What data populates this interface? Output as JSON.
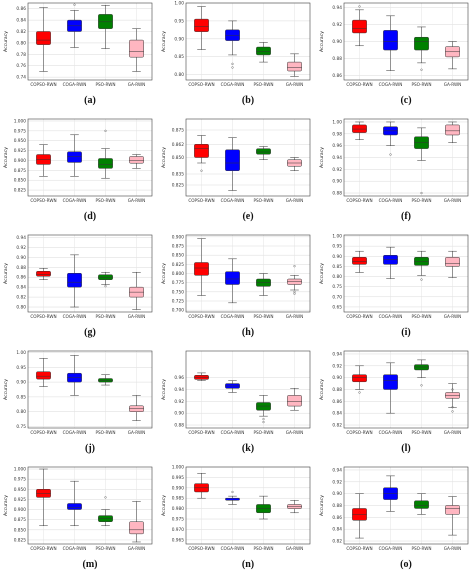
{
  "figure": {
    "categories": [
      "COPSO-RWN",
      "COGA-RWN",
      "PSO-RWN",
      "GA-RWN"
    ],
    "ylabel": "Accuracy",
    "colors": {
      "COPSO-RWN": "#ff0000",
      "COGA-RWN": "#0000ff",
      "PSO-RWN": "#008000",
      "GA-RWN": "#ffb6c1"
    }
  },
  "chart_data": [
    {
      "label": "(a)",
      "type": "boxplot",
      "ylabel": "Accuracy",
      "ylim": [
        0.735,
        0.87
      ],
      "ticks": [
        0.74,
        0.76,
        0.78,
        0.8,
        0.82,
        0.84,
        0.86
      ],
      "ticklabels": [
        "0.74",
        "0.76",
        "0.78",
        "0.80",
        "0.82",
        "0.84",
        "0.86"
      ],
      "series": [
        {
          "category": "COPSO-RWN",
          "min": 0.75,
          "q1": 0.797,
          "median": 0.805,
          "q3": 0.82,
          "max": 0.862,
          "outliers": []
        },
        {
          "category": "COGA-RWN",
          "min": 0.792,
          "q1": 0.82,
          "median": 0.83,
          "q3": 0.84,
          "max": 0.857,
          "outliers": [
            0.867
          ]
        },
        {
          "category": "PSO-RWN",
          "min": 0.79,
          "q1": 0.825,
          "median": 0.837,
          "q3": 0.85,
          "max": 0.866,
          "outliers": []
        },
        {
          "category": "GA-RWN",
          "min": 0.75,
          "q1": 0.775,
          "median": 0.785,
          "q3": 0.805,
          "max": 0.825,
          "outliers": []
        }
      ]
    },
    {
      "label": "(b)",
      "type": "boxplot",
      "ylabel": "Accuracy",
      "ylim": [
        0.785,
        1.0
      ],
      "ticks": [
        0.8,
        0.85,
        0.9,
        0.95,
        1.0
      ],
      "ticklabels": [
        "0.80",
        "0.85",
        "0.90",
        "0.95",
        "1.00"
      ],
      "series": [
        {
          "category": "COPSO-RWN",
          "min": 0.87,
          "q1": 0.92,
          "median": 0.935,
          "q3": 0.955,
          "max": 0.99,
          "outliers": []
        },
        {
          "category": "COGA-RWN",
          "min": 0.855,
          "q1": 0.895,
          "median": 0.91,
          "q3": 0.925,
          "max": 0.95,
          "outliers": [
            0.83,
            0.82
          ]
        },
        {
          "category": "PSO-RWN",
          "min": 0.835,
          "q1": 0.855,
          "median": 0.865,
          "q3": 0.877,
          "max": 0.89,
          "outliers": []
        },
        {
          "category": "GA-RWN",
          "min": 0.795,
          "q1": 0.81,
          "median": 0.82,
          "q3": 0.835,
          "max": 0.858,
          "outliers": []
        }
      ]
    },
    {
      "label": "(c)",
      "type": "boxplot",
      "ylabel": "Accuracy",
      "ylim": [
        0.855,
        0.945
      ],
      "ticks": [
        0.86,
        0.88,
        0.9,
        0.92,
        0.94
      ],
      "ticklabels": [
        "0.86",
        "0.88",
        "0.90",
        "0.92",
        "0.94"
      ],
      "series": [
        {
          "category": "COPSO-RWN",
          "min": 0.895,
          "q1": 0.91,
          "median": 0.915,
          "q3": 0.925,
          "max": 0.937,
          "outliers": [
            0.941
          ]
        },
        {
          "category": "COGA-RWN",
          "min": 0.866,
          "q1": 0.89,
          "median": 0.9,
          "q3": 0.913,
          "max": 0.93,
          "outliers": []
        },
        {
          "category": "PSO-RWN",
          "min": 0.875,
          "q1": 0.89,
          "median": 0.9,
          "q3": 0.905,
          "max": 0.917,
          "outliers": [
            0.867
          ]
        },
        {
          "category": "GA-RWN",
          "min": 0.868,
          "q1": 0.882,
          "median": 0.888,
          "q3": 0.894,
          "max": 0.9,
          "outliers": []
        }
      ]
    },
    {
      "label": "(d)",
      "type": "boxplot",
      "ylabel": "Accuracy",
      "ylim": [
        0.81,
        1.005
      ],
      "ticks": [
        0.825,
        0.85,
        0.875,
        0.9,
        0.925,
        0.95,
        0.975,
        1.0
      ],
      "ticklabels": [
        "0.825",
        "0.850",
        "0.875",
        "0.900",
        "0.925",
        "0.950",
        "0.975",
        "1.000"
      ],
      "series": [
        {
          "category": "COPSO-RWN",
          "min": 0.86,
          "q1": 0.89,
          "median": 0.903,
          "q3": 0.915,
          "max": 0.94,
          "outliers": []
        },
        {
          "category": "COGA-RWN",
          "min": 0.86,
          "q1": 0.895,
          "median": 0.91,
          "q3": 0.922,
          "max": 0.965,
          "outliers": []
        },
        {
          "category": "PSO-RWN",
          "min": 0.855,
          "q1": 0.88,
          "median": 0.89,
          "q3": 0.905,
          "max": 0.93,
          "outliers": [
            0.975
          ]
        },
        {
          "category": "GA-RWN",
          "min": 0.88,
          "q1": 0.893,
          "median": 0.9,
          "q3": 0.91,
          "max": 0.915,
          "outliers": []
        }
      ]
    },
    {
      "label": "(e)",
      "type": "boxplot",
      "ylabel": "Accuracy",
      "ylim": [
        0.815,
        0.885
      ],
      "ticks": [
        0.825,
        0.835,
        0.85,
        0.862,
        0.875
      ],
      "ticklabels": [
        "0.825",
        "0.835",
        "0.850",
        "0.862",
        "0.875"
      ],
      "series": [
        {
          "category": "COPSO-RWN",
          "min": 0.845,
          "q1": 0.85,
          "median": 0.858,
          "q3": 0.862,
          "max": 0.87,
          "outliers": [
            0.838
          ]
        },
        {
          "category": "COGA-RWN",
          "min": 0.82,
          "q1": 0.838,
          "median": 0.845,
          "q3": 0.857,
          "max": 0.868,
          "outliers": []
        },
        {
          "category": "PSO-RWN",
          "min": 0.848,
          "q1": 0.853,
          "median": 0.855,
          "q3": 0.858,
          "max": 0.86,
          "outliers": []
        },
        {
          "category": "GA-RWN",
          "min": 0.838,
          "q1": 0.842,
          "median": 0.845,
          "q3": 0.848,
          "max": 0.85,
          "outliers": []
        }
      ]
    },
    {
      "label": "(f)",
      "type": "boxplot",
      "ylabel": "Accuracy",
      "ylim": [
        0.875,
        1.005
      ],
      "ticks": [
        0.88,
        0.9,
        0.92,
        0.94,
        0.96,
        0.98,
        1.0
      ],
      "ticklabels": [
        "0.88",
        "0.90",
        "0.92",
        "0.94",
        "0.96",
        "0.98",
        "1.00"
      ],
      "series": [
        {
          "category": "COPSO-RWN",
          "min": 0.97,
          "q1": 0.982,
          "median": 0.988,
          "q3": 0.995,
          "max": 1.0,
          "outliers": []
        },
        {
          "category": "COGA-RWN",
          "min": 0.96,
          "q1": 0.978,
          "median": 0.985,
          "q3": 0.992,
          "max": 1.0,
          "outliers": [
            0.945
          ]
        },
        {
          "category": "PSO-RWN",
          "min": 0.935,
          "q1": 0.955,
          "median": 0.965,
          "q3": 0.975,
          "max": 0.99,
          "outliers": [
            0.88
          ]
        },
        {
          "category": "GA-RWN",
          "min": 0.965,
          "q1": 0.978,
          "median": 0.985,
          "q3": 0.995,
          "max": 1.0,
          "outliers": []
        }
      ]
    },
    {
      "label": "(g)",
      "type": "boxplot",
      "ylabel": "Accuracy",
      "ylim": [
        0.79,
        0.945
      ],
      "ticks": [
        0.8,
        0.82,
        0.84,
        0.86,
        0.88,
        0.9,
        0.92,
        0.94
      ],
      "ticklabels": [
        "0.80",
        "0.82",
        "0.84",
        "0.86",
        "0.88",
        "0.90",
        "0.92",
        "0.94"
      ],
      "series": [
        {
          "category": "COPSO-RWN",
          "min": 0.855,
          "q1": 0.862,
          "median": 0.866,
          "q3": 0.872,
          "max": 0.878,
          "outliers": []
        },
        {
          "category": "COGA-RWN",
          "min": 0.8,
          "q1": 0.84,
          "median": 0.85,
          "q3": 0.868,
          "max": 0.905,
          "outliers": []
        },
        {
          "category": "PSO-RWN",
          "min": 0.845,
          "q1": 0.855,
          "median": 0.86,
          "q3": 0.865,
          "max": 0.87,
          "outliers": [
            0.842
          ]
        },
        {
          "category": "GA-RWN",
          "min": 0.795,
          "q1": 0.82,
          "median": 0.83,
          "q3": 0.84,
          "max": 0.87,
          "outliers": []
        }
      ]
    },
    {
      "label": "(h)",
      "type": "boxplot",
      "ylabel": "Accuracy",
      "ylim": [
        0.695,
        0.905
      ],
      "ticks": [
        0.7,
        0.725,
        0.75,
        0.775,
        0.8,
        0.825,
        0.85,
        0.875,
        0.9
      ],
      "ticklabels": [
        "0.700",
        "0.725",
        "0.750",
        "0.775",
        "0.800",
        "0.825",
        "0.850",
        "0.875",
        "0.900"
      ],
      "series": [
        {
          "category": "COPSO-RWN",
          "min": 0.74,
          "q1": 0.795,
          "median": 0.815,
          "q3": 0.83,
          "max": 0.895,
          "outliers": []
        },
        {
          "category": "COGA-RWN",
          "min": 0.72,
          "q1": 0.77,
          "median": 0.785,
          "q3": 0.805,
          "max": 0.84,
          "outliers": []
        },
        {
          "category": "PSO-RWN",
          "min": 0.74,
          "q1": 0.765,
          "median": 0.775,
          "q3": 0.785,
          "max": 0.8,
          "outliers": []
        },
        {
          "category": "GA-RWN",
          "min": 0.755,
          "q1": 0.77,
          "median": 0.778,
          "q3": 0.785,
          "max": 0.795,
          "outliers": [
            0.82,
            0.75,
            0.745
          ]
        }
      ]
    },
    {
      "label": "(i)",
      "type": "boxplot",
      "ylabel": "Accuracy",
      "ylim": [
        0.625,
        1.005
      ],
      "ticks": [
        0.65,
        0.7,
        0.75,
        0.8,
        0.85,
        0.9,
        0.95,
        1.0
      ],
      "ticklabels": [
        "0.65",
        "0.70",
        "0.75",
        "0.80",
        "0.85",
        "0.90",
        "0.95",
        "1.00"
      ],
      "series": [
        {
          "category": "COPSO-RWN",
          "min": 0.82,
          "q1": 0.86,
          "median": 0.875,
          "q3": 0.895,
          "max": 0.925,
          "outliers": []
        },
        {
          "category": "COGA-RWN",
          "min": 0.79,
          "q1": 0.86,
          "median": 0.885,
          "q3": 0.905,
          "max": 0.945,
          "outliers": []
        },
        {
          "category": "PSO-RWN",
          "min": 0.805,
          "q1": 0.855,
          "median": 0.875,
          "q3": 0.895,
          "max": 0.925,
          "outliers": [
            0.785
          ]
        },
        {
          "category": "GA-RWN",
          "min": 0.795,
          "q1": 0.85,
          "median": 0.865,
          "q3": 0.895,
          "max": 0.925,
          "outliers": []
        }
      ]
    },
    {
      "label": "(j)",
      "type": "boxplot",
      "ylabel": "Accuracy",
      "ylim": [
        0.745,
        1.005
      ],
      "ticks": [
        0.75,
        0.8,
        0.85,
        0.9,
        0.95,
        1.0
      ],
      "ticklabels": [
        "0.75",
        "0.80",
        "0.85",
        "0.90",
        "0.95",
        "1.00"
      ],
      "series": [
        {
          "category": "COPSO-RWN",
          "min": 0.885,
          "q1": 0.91,
          "median": 0.92,
          "q3": 0.935,
          "max": 0.98,
          "outliers": []
        },
        {
          "category": "COGA-RWN",
          "min": 0.855,
          "q1": 0.9,
          "median": 0.915,
          "q3": 0.93,
          "max": 0.99,
          "outliers": []
        },
        {
          "category": "PSO-RWN",
          "min": 0.89,
          "q1": 0.9,
          "median": 0.905,
          "q3": 0.912,
          "max": 0.925,
          "outliers": []
        },
        {
          "category": "GA-RWN",
          "min": 0.77,
          "q1": 0.8,
          "median": 0.81,
          "q3": 0.82,
          "max": 0.855,
          "outliers": []
        }
      ]
    },
    {
      "label": "(k)",
      "type": "boxplot",
      "ylabel": "Accuracy",
      "ylim": [
        0.875,
        1.005
      ],
      "ticks": [
        0.88,
        0.9,
        0.92,
        0.94,
        0.96
      ],
      "ticklabels": [
        "0.88",
        "0.90",
        "0.92",
        "0.94",
        "0.96"
      ],
      "series": [
        {
          "category": "COPSO-RWN",
          "min": 0.955,
          "q1": 0.957,
          "median": 0.96,
          "q3": 0.964,
          "max": 0.968,
          "outliers": []
        },
        {
          "category": "COGA-RWN",
          "min": 0.935,
          "q1": 0.942,
          "median": 0.946,
          "q3": 0.95,
          "max": 0.955,
          "outliers": []
        },
        {
          "category": "PSO-RWN",
          "min": 0.895,
          "q1": 0.905,
          "median": 0.912,
          "q3": 0.918,
          "max": 0.93,
          "outliers": [
            0.89,
            0.885
          ]
        },
        {
          "category": "GA-RWN",
          "min": 0.905,
          "q1": 0.912,
          "median": 0.92,
          "q3": 0.93,
          "max": 0.942,
          "outliers": []
        }
      ]
    },
    {
      "label": "(l)",
      "type": "boxplot",
      "ylabel": "Accuracy",
      "ylim": [
        0.815,
        0.945
      ],
      "ticks": [
        0.82,
        0.84,
        0.86,
        0.88,
        0.9,
        0.92,
        0.94
      ],
      "ticklabels": [
        "0.82",
        "0.84",
        "0.86",
        "0.88",
        "0.90",
        "0.92",
        "0.94"
      ],
      "series": [
        {
          "category": "COPSO-RWN",
          "min": 0.88,
          "q1": 0.893,
          "median": 0.9,
          "q3": 0.905,
          "max": 0.92,
          "outliers": [
            0.875
          ]
        },
        {
          "category": "COGA-RWN",
          "min": 0.84,
          "q1": 0.88,
          "median": 0.895,
          "q3": 0.905,
          "max": 0.925,
          "outliers": []
        },
        {
          "category": "PSO-RWN",
          "min": 0.9,
          "q1": 0.913,
          "median": 0.918,
          "q3": 0.922,
          "max": 0.93,
          "outliers": [
            0.887
          ]
        },
        {
          "category": "GA-RWN",
          "min": 0.85,
          "q1": 0.865,
          "median": 0.87,
          "q3": 0.875,
          "max": 0.89,
          "outliers": [
            0.88,
            0.85,
            0.843
          ]
        }
      ]
    },
    {
      "label": "(m)",
      "type": "boxplot",
      "ylabel": "Accuracy",
      "ylim": [
        0.815,
        1.005
      ],
      "ticks": [
        0.825,
        0.85,
        0.875,
        0.9,
        0.925,
        0.95,
        0.975,
        1.0
      ],
      "ticklabels": [
        "0.825",
        "0.850",
        "0.875",
        "0.900",
        "0.925",
        "0.950",
        "0.975",
        "1.000"
      ],
      "series": [
        {
          "category": "COPSO-RWN",
          "min": 0.86,
          "q1": 0.93,
          "median": 0.94,
          "q3": 0.95,
          "max": 1.0,
          "outliers": []
        },
        {
          "category": "COGA-RWN",
          "min": 0.86,
          "q1": 0.9,
          "median": 0.905,
          "q3": 0.915,
          "max": 0.97,
          "outliers": []
        },
        {
          "category": "PSO-RWN",
          "min": 0.86,
          "q1": 0.87,
          "median": 0.878,
          "q3": 0.885,
          "max": 0.9,
          "outliers": [
            0.93
          ]
        },
        {
          "category": "GA-RWN",
          "min": 0.82,
          "q1": 0.84,
          "median": 0.85,
          "q3": 0.87,
          "max": 0.92,
          "outliers": []
        }
      ]
    },
    {
      "label": "(n)",
      "type": "boxplot",
      "ylabel": "Accuracy",
      "ylim": [
        0.963,
        1.0
      ],
      "ticks": [
        0.965,
        0.97,
        0.975,
        0.98,
        0.985,
        0.99,
        0.995,
        1.0
      ],
      "ticklabels": [
        "0.965",
        "0.970",
        "0.975",
        "0.980",
        "0.985",
        "0.990",
        "0.995",
        "1.000"
      ],
      "series": [
        {
          "category": "COPSO-RWN",
          "min": 0.985,
          "q1": 0.988,
          "median": 0.99,
          "q3": 0.992,
          "max": 0.997,
          "outliers": []
        },
        {
          "category": "COGA-RWN",
          "min": 0.982,
          "q1": 0.984,
          "median": 0.985,
          "q3": 0.985,
          "max": 0.986,
          "outliers": [
            0.988
          ]
        },
        {
          "category": "PSO-RWN",
          "min": 0.975,
          "q1": 0.978,
          "median": 0.98,
          "q3": 0.982,
          "max": 0.986,
          "outliers": []
        },
        {
          "category": "GA-RWN",
          "min": 0.978,
          "q1": 0.98,
          "median": 0.981,
          "q3": 0.982,
          "max": 0.984,
          "outliers": []
        }
      ]
    },
    {
      "label": "(o)",
      "type": "boxplot",
      "ylabel": "Accuracy",
      "ylim": [
        0.815,
        0.945
      ],
      "ticks": [
        0.82,
        0.84,
        0.86,
        0.88,
        0.9,
        0.92,
        0.94
      ],
      "ticklabels": [
        "0.82",
        "0.84",
        "0.86",
        "0.88",
        "0.90",
        "0.92",
        "0.94"
      ],
      "series": [
        {
          "category": "COPSO-RWN",
          "min": 0.825,
          "q1": 0.855,
          "median": 0.865,
          "q3": 0.875,
          "max": 0.9,
          "outliers": []
        },
        {
          "category": "COGA-RWN",
          "min": 0.87,
          "q1": 0.89,
          "median": 0.9,
          "q3": 0.91,
          "max": 0.93,
          "outliers": []
        },
        {
          "category": "PSO-RWN",
          "min": 0.865,
          "q1": 0.875,
          "median": 0.88,
          "q3": 0.888,
          "max": 0.9,
          "outliers": []
        },
        {
          "category": "GA-RWN",
          "min": 0.83,
          "q1": 0.865,
          "median": 0.875,
          "q3": 0.88,
          "max": 0.895,
          "outliers": []
        }
      ]
    }
  ]
}
